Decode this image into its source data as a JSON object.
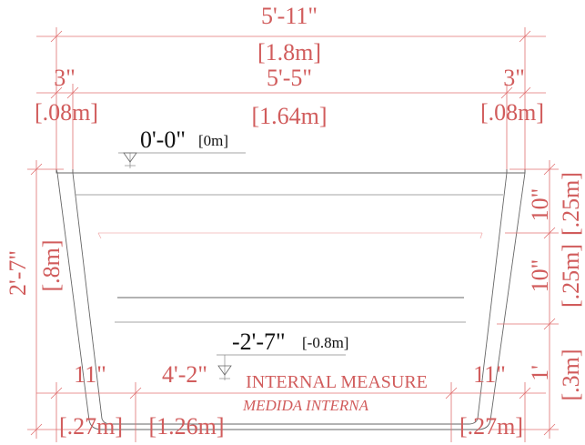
{
  "dimensions": {
    "overall_width": {
      "imperial": "5'-11\"",
      "metric": "[1.8m]"
    },
    "left_rim": {
      "imperial": "3\"",
      "metric": "[.08m]"
    },
    "inner_width": {
      "imperial": "5'-5\"",
      "metric": "[1.64m]"
    },
    "right_rim": {
      "imperial": "3\"",
      "metric": "[.08m]"
    },
    "total_depth": {
      "imperial": "2'-7\"",
      "metric": "[.8m]"
    },
    "depth_upper": {
      "imperial": "10\"",
      "metric": "[.25m]"
    },
    "depth_middle": {
      "imperial": "10\"",
      "metric": "[.25m]"
    },
    "depth_lower": {
      "imperial": "1'",
      "metric": "[.3m]"
    },
    "bottom_left_slope": {
      "imperial": "11\"",
      "metric": "[.27m]"
    },
    "bottom_floor": {
      "imperial": "4'-2\"",
      "metric": "[1.26m]"
    },
    "bottom_right_slope": {
      "imperial": "11\"",
      "metric": "[.27m]"
    }
  },
  "levels": {
    "top": {
      "imperial": "0'-0\"",
      "metric": "[0m]"
    },
    "bottom": {
      "imperial": "-2'-7\"",
      "metric": "[-0.8m]"
    }
  },
  "notes": {
    "internal_measure": "INTERNAL MEASURE",
    "medida_interna": "MEDIDA INTERNA"
  }
}
